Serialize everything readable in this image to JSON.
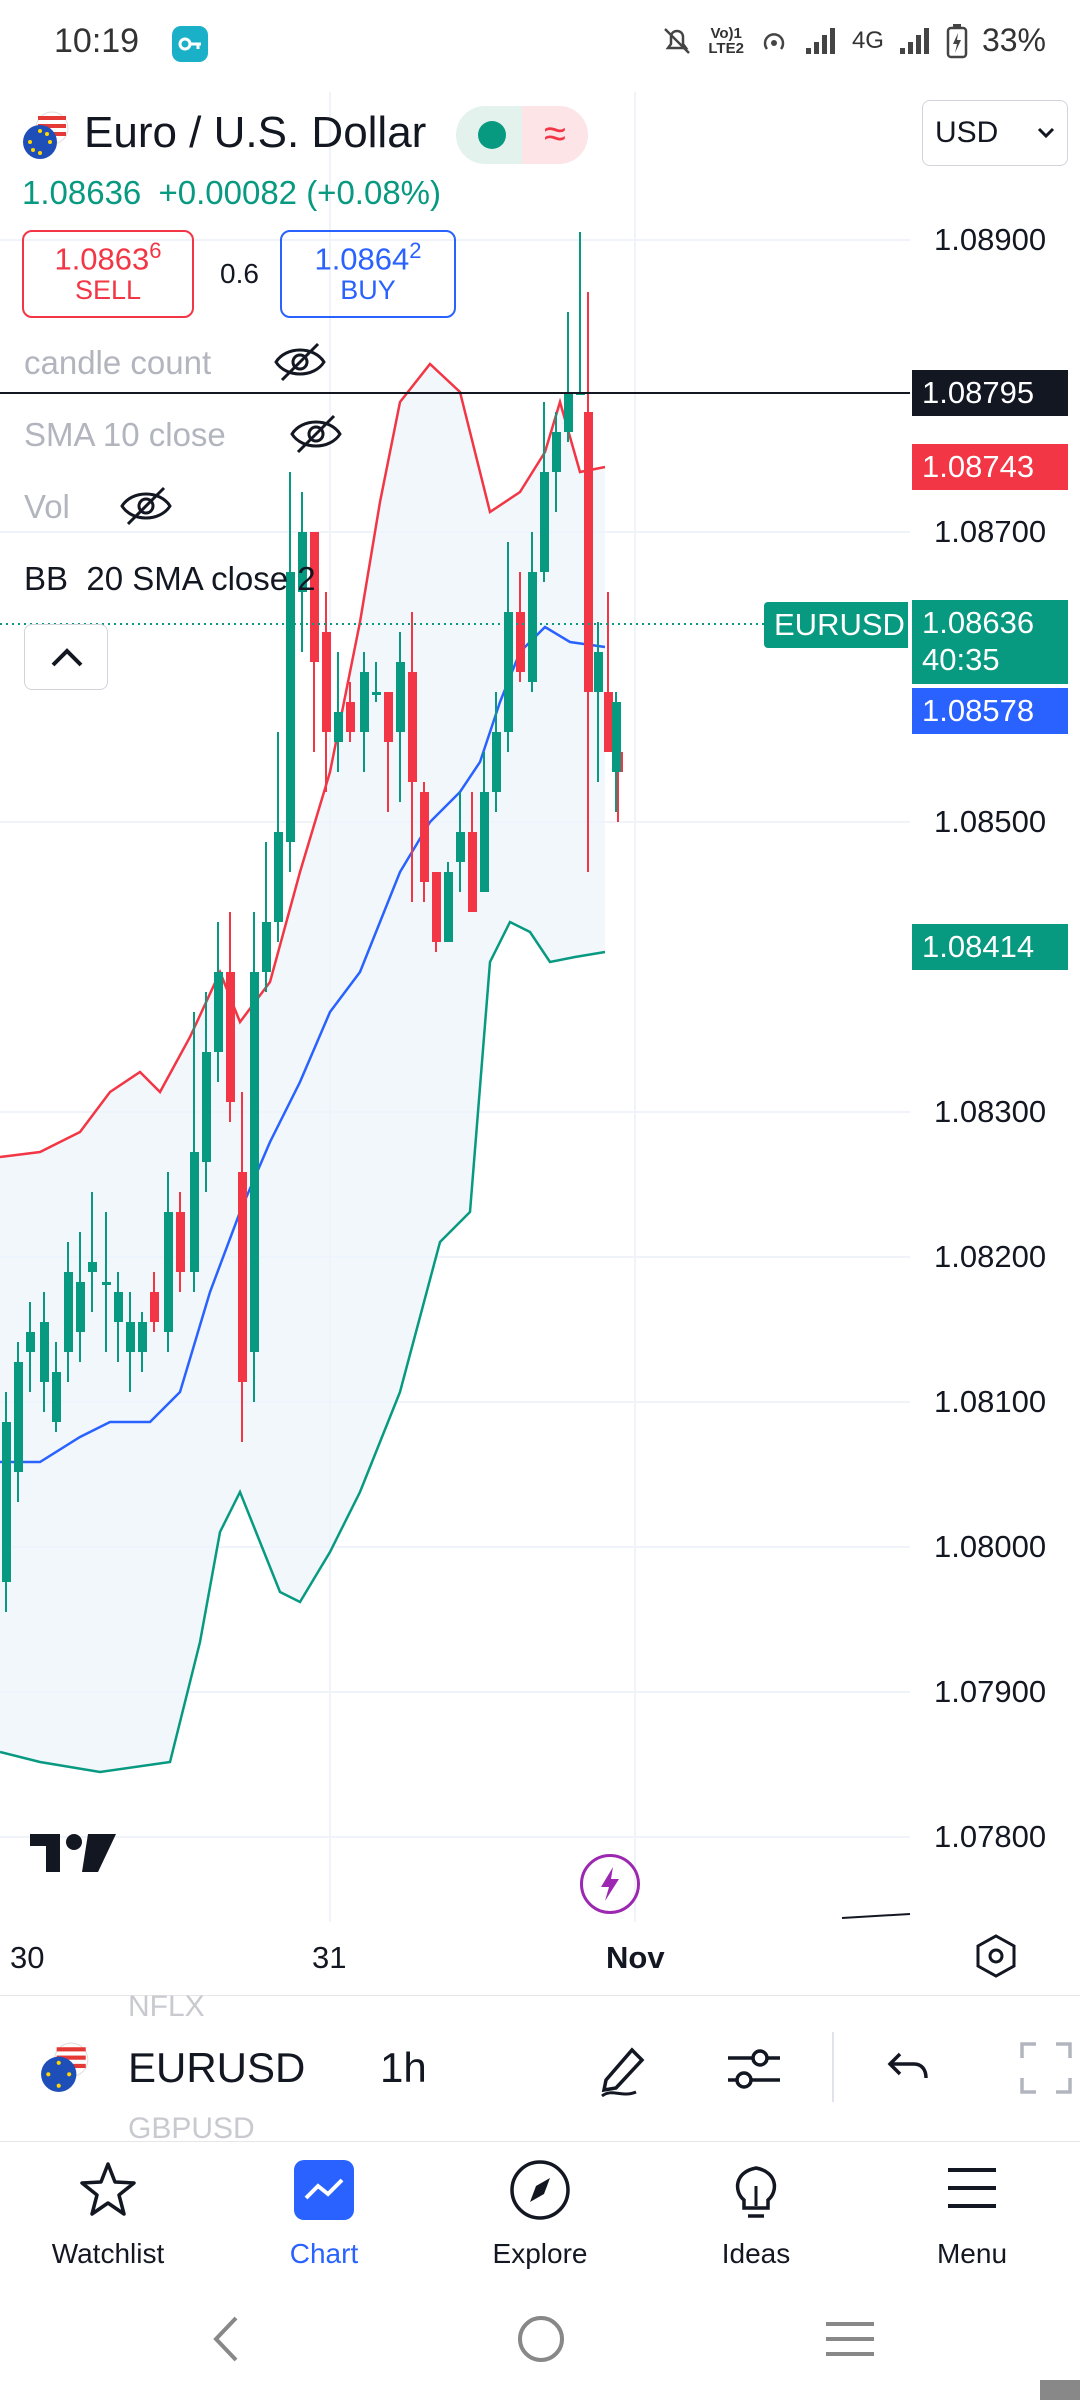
{
  "status_bar": {
    "time": "10:19",
    "network": "4G",
    "battery": "33%",
    "lte_top": "Vo)1",
    "lte_bottom": "LTE2"
  },
  "symbol_header": {
    "title": "Euro / U.S. Dollar",
    "price": "1.08636",
    "change": "+0.00082 (+0.08%)",
    "sell_price_main": "1.0863",
    "sell_price_sup": "6",
    "sell_label": "SELL",
    "spread": "0.6",
    "buy_price_main": "1.0864",
    "buy_price_sup": "2",
    "buy_label": "BUY"
  },
  "indicators": [
    {
      "label": "candle count",
      "hidden": true
    },
    {
      "label": "SMA 10 close",
      "hidden": true
    },
    {
      "label": "Vol",
      "hidden": true
    },
    {
      "label": "BB  20 SMA close 2",
      "hidden": false
    }
  ],
  "price_axis": {
    "ticks": [
      "1.08900",
      "1.08700",
      "1.08500",
      "1.08300",
      "1.08200",
      "1.08100",
      "1.08000",
      "1.07900",
      "1.07800"
    ],
    "crosshair_price": "1.08795",
    "bb_upper": "1.08743",
    "symbol_tag": "EURUSD",
    "last_price": "1.08636",
    "countdown": "40:35",
    "bb_basis": "1.08578",
    "bb_lower": "1.08414"
  },
  "time_axis": {
    "labels": [
      "30",
      "31",
      "Nov"
    ]
  },
  "toolbar": {
    "symbol": "EURUSD",
    "interval": "1h",
    "peek_above": "NFLX",
    "peek_below": "GBPUSD"
  },
  "bottom_nav": [
    {
      "label": "Watchlist",
      "icon": "star-icon",
      "active": false
    },
    {
      "label": "Chart",
      "icon": "chart-icon",
      "active": true
    },
    {
      "label": "Explore",
      "icon": "compass-icon",
      "active": false
    },
    {
      "label": "Ideas",
      "icon": "lightbulb-icon",
      "active": false
    },
    {
      "label": "Menu",
      "icon": "hamburger-icon",
      "active": false
    }
  ],
  "colors": {
    "up": "#089981",
    "down": "#f23645",
    "bb_upper": "#f23645",
    "bb_lower": "#089981",
    "bb_basis": "#2962ff",
    "accent": "#2962ff"
  }
}
